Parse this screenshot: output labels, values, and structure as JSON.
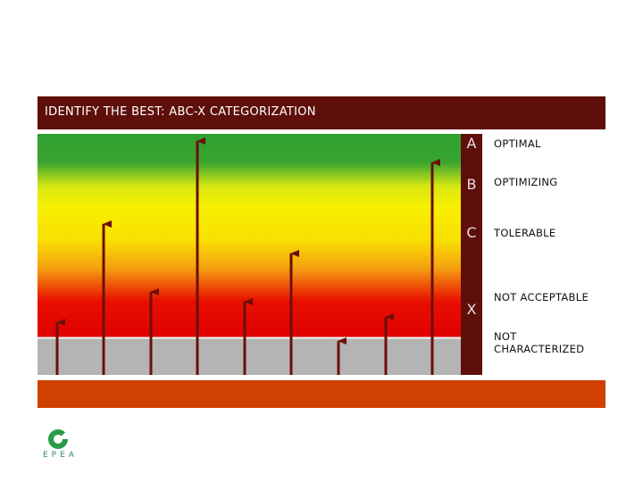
{
  "header": {
    "title": "IDENTIFY THE BEST: ABC-X CATEGORIZATION"
  },
  "categories": [
    {
      "letter": "A",
      "label": "OPTIMAL"
    },
    {
      "letter": "B",
      "label": "OPTIMIZING"
    },
    {
      "letter": "C",
      "label": "TOLERABLE"
    },
    {
      "letter": "X",
      "label": "NOT ACCEPTABLE"
    }
  ],
  "uncategorized": {
    "label": "NOT CHARACTERIZED"
  },
  "logo": {
    "text": "EPEA"
  }
}
